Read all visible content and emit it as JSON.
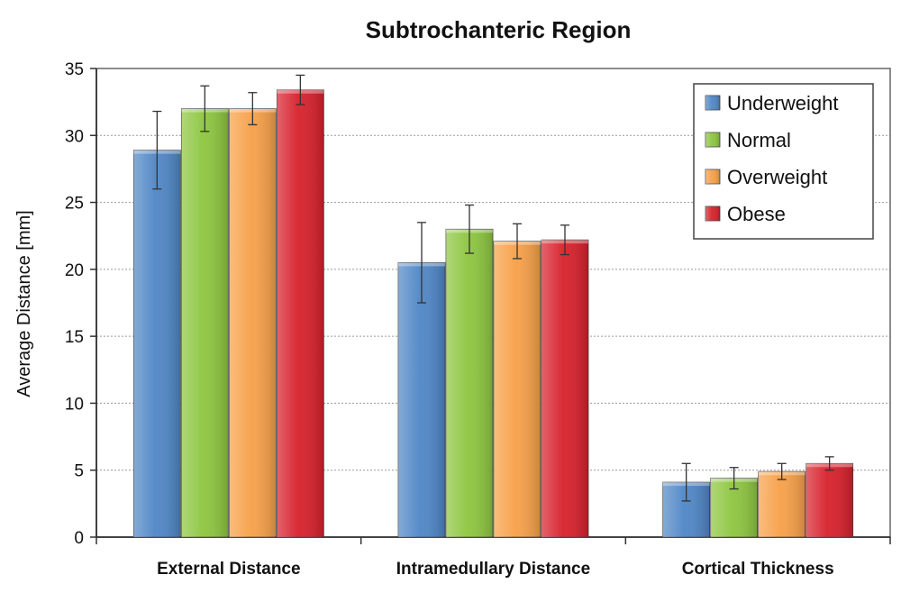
{
  "chart_data": {
    "type": "bar",
    "title": "Subtrochanteric Region",
    "xlabel": "",
    "ylabel": "Average  Distance  [mm]",
    "ylim": [
      0,
      35
    ],
    "yticks": [
      0,
      5,
      10,
      15,
      20,
      25,
      30,
      35
    ],
    "grid": true,
    "legend_position": "top-right",
    "categories": [
      "External Distance",
      "Intramedullary Distance",
      "Cortical Thickness"
    ],
    "series": [
      {
        "name": "Underweight",
        "color": "#4f86c6",
        "values": [
          28.9,
          20.5,
          4.1
        ],
        "errors": [
          2.9,
          3.0,
          1.4
        ]
      },
      {
        "name": "Normal",
        "color": "#8dc63f",
        "values": [
          32.0,
          23.0,
          4.4
        ],
        "errors": [
          1.7,
          1.8,
          0.8
        ]
      },
      {
        "name": "Overweight",
        "color": "#f7a048",
        "values": [
          32.0,
          22.1,
          4.9
        ],
        "errors": [
          1.2,
          1.3,
          0.6
        ]
      },
      {
        "name": "Obese",
        "color": "#d7202b",
        "values": [
          33.4,
          22.2,
          5.5
        ],
        "errors": [
          1.1,
          1.1,
          0.5
        ]
      }
    ]
  }
}
